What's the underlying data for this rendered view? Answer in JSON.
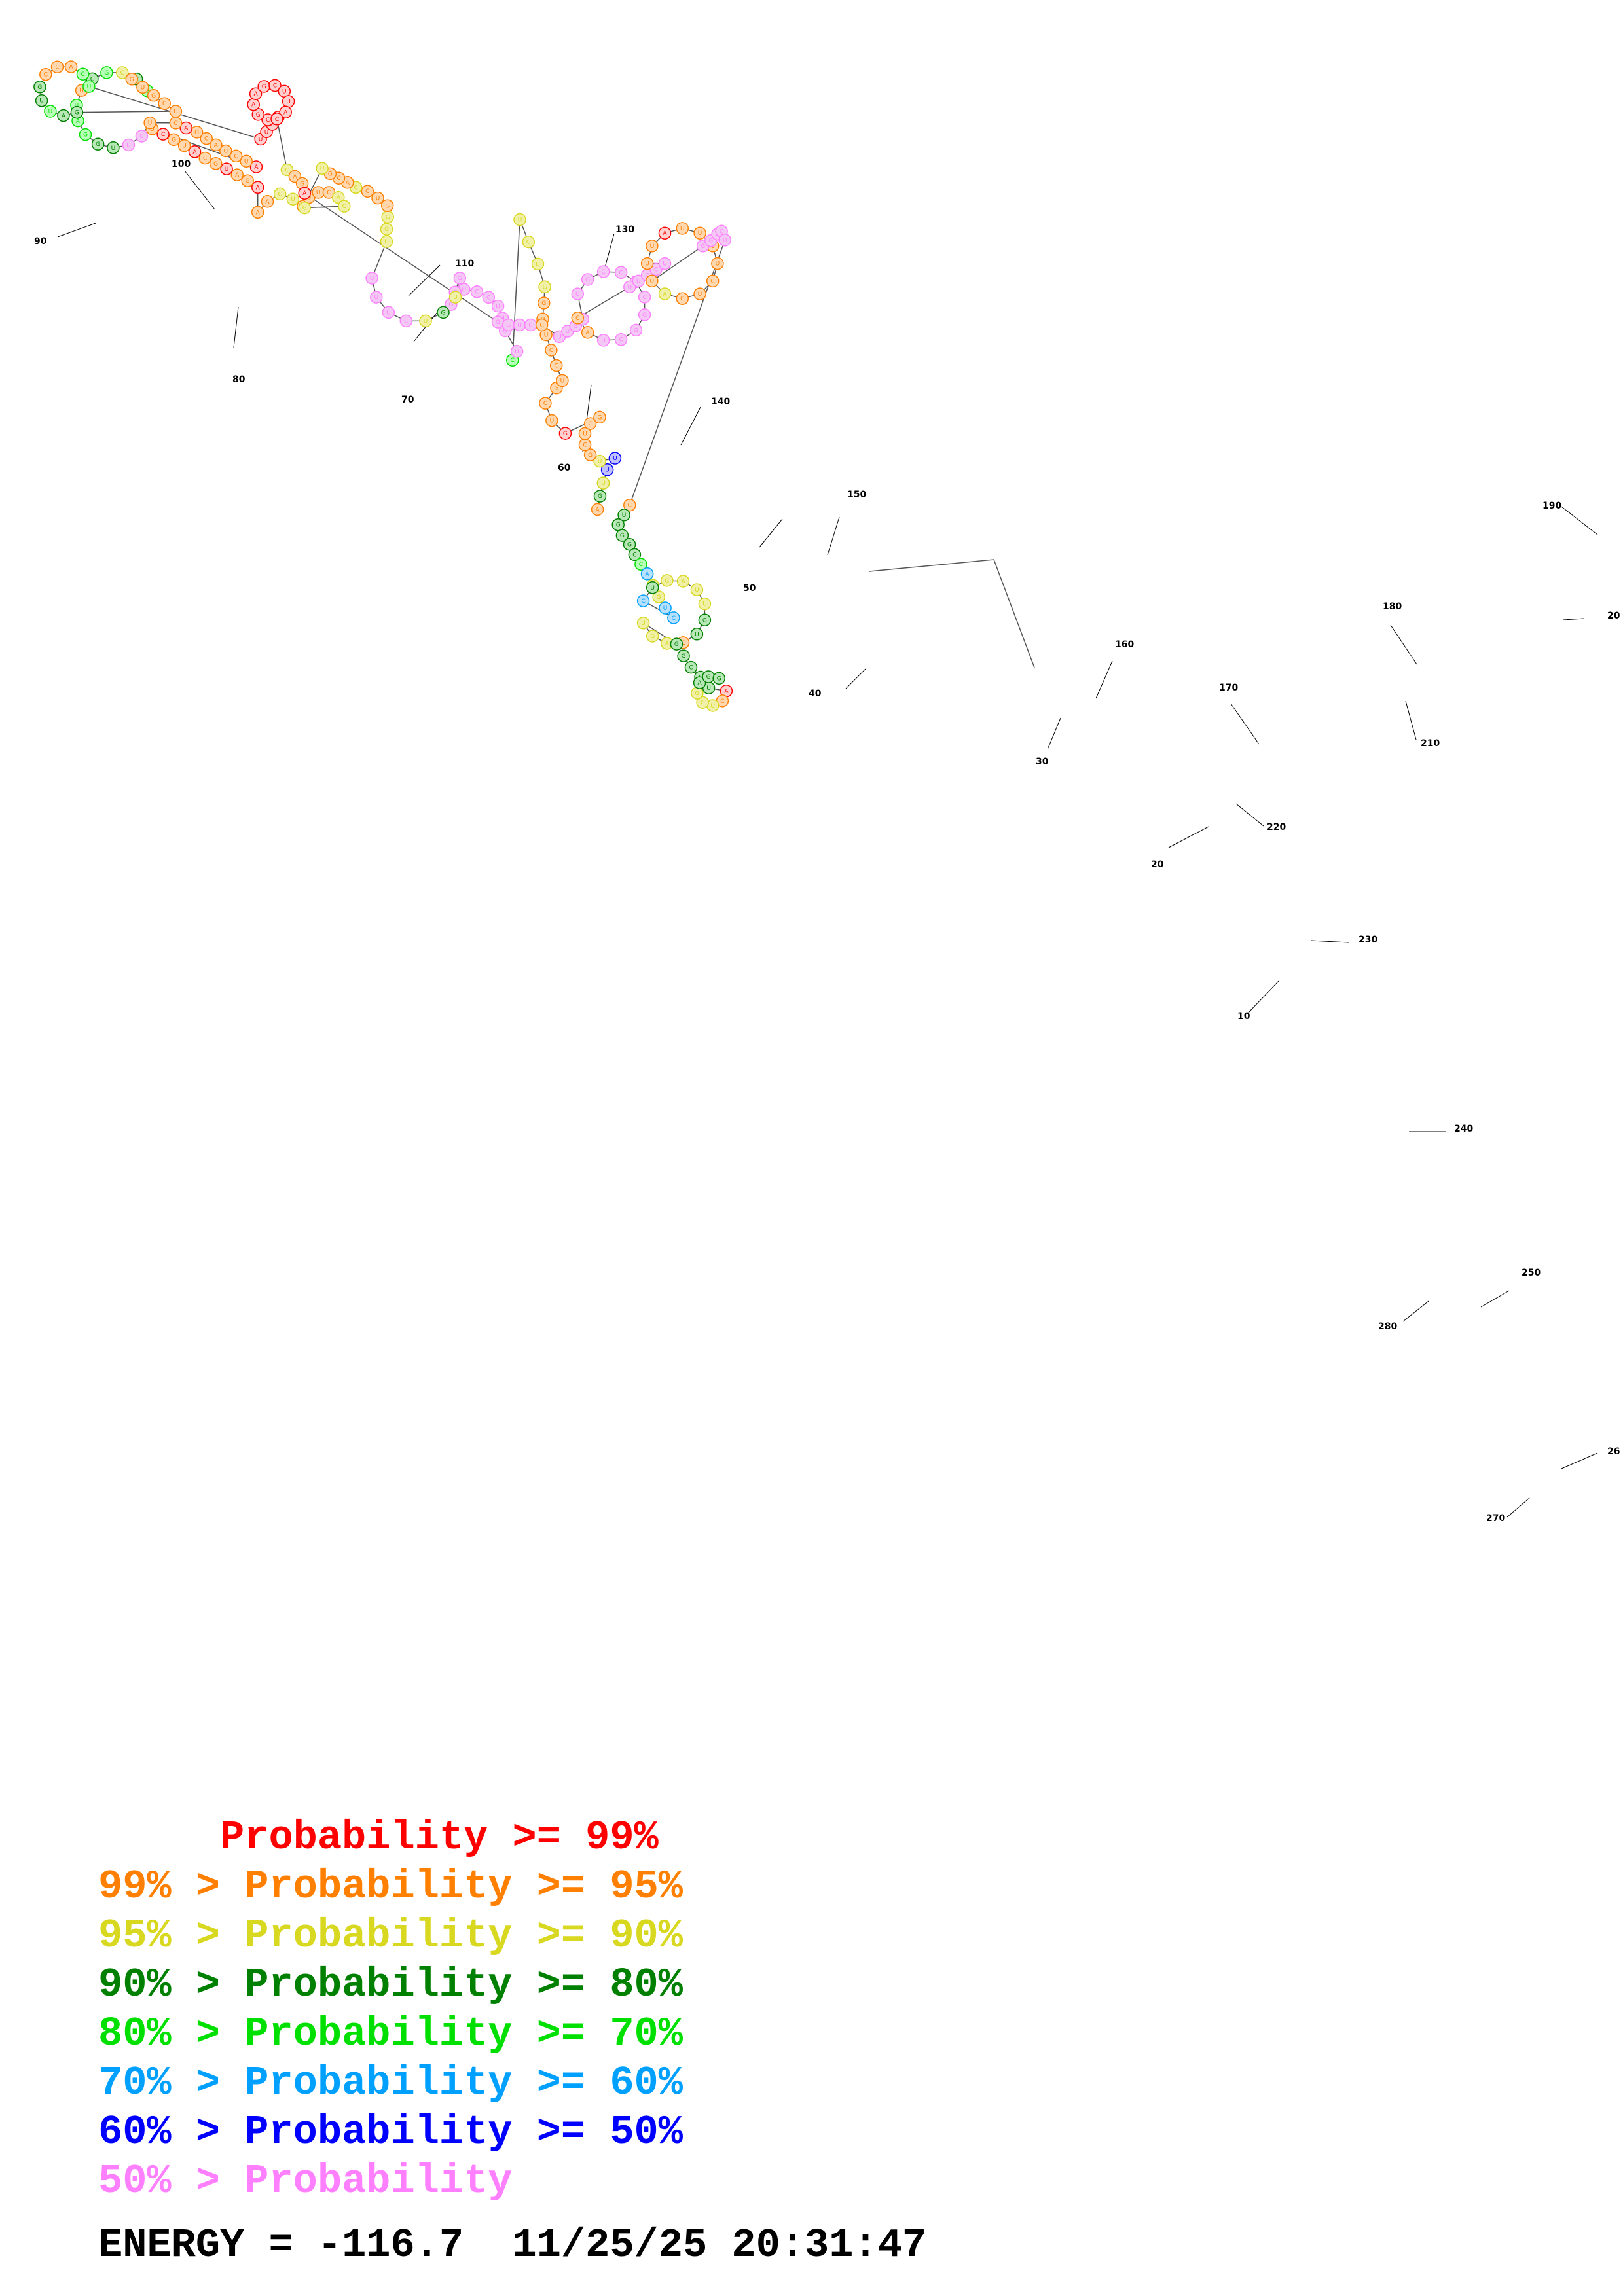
{
  "diagram": {
    "type": "rna-secondary-structure",
    "position_labels": [
      "10",
      "20",
      "30",
      "40",
      "50",
      "60",
      "70",
      "80",
      "90",
      "100",
      "110",
      "130",
      "140",
      "150",
      "160",
      "170",
      "180",
      "190",
      "20",
      "210",
      "220",
      "230",
      "240",
      "250",
      "26",
      "270",
      "280"
    ],
    "bucket_colors": {
      "p99": "#ff0000",
      "p95": "#ff8000",
      "p90": "#d8d820",
      "p80": "#008000",
      "p70": "#00e000",
      "p60": "#00a0ff",
      "p50": "#0000ff",
      "plow": "#ff80ff"
    },
    "bucket_fills": {
      "p99": "#ffd0d0",
      "p95": "#ffd8b0",
      "p90": "#f0f0a8",
      "p80": "#b8e8b8",
      "p70": "#b8ffb8",
      "p60": "#b8e0ff",
      "p50": "#c0c0ff",
      "plow": "#f4c8f4"
    }
  },
  "legend": [
    {
      "prefix": "     ",
      "text": "Probability >= 99%",
      "color": "#ff0000"
    },
    {
      "prefix": "99% > ",
      "text": "Probability >= 95%",
      "color": "#ff8000"
    },
    {
      "prefix": "95% > ",
      "text": "Probability >= 90%",
      "color": "#d8d820"
    },
    {
      "prefix": "90% > ",
      "text": "Probability >= 80%",
      "color": "#008000"
    },
    {
      "prefix": "80% > ",
      "text": "Probability >= 70%",
      "color": "#00e000"
    },
    {
      "prefix": "70% > ",
      "text": "Probability >= 60%",
      "color": "#00a0ff"
    },
    {
      "prefix": "60% > ",
      "text": "Probability >= 50%",
      "color": "#0000ff"
    },
    {
      "prefix": "50% > ",
      "text": "Probability",
      "color": "#ff80ff"
    }
  ],
  "energy": {
    "label": "ENERGY = ",
    "value": "-116.7",
    "timestamp": "11/25/25 20:31:47"
  }
}
